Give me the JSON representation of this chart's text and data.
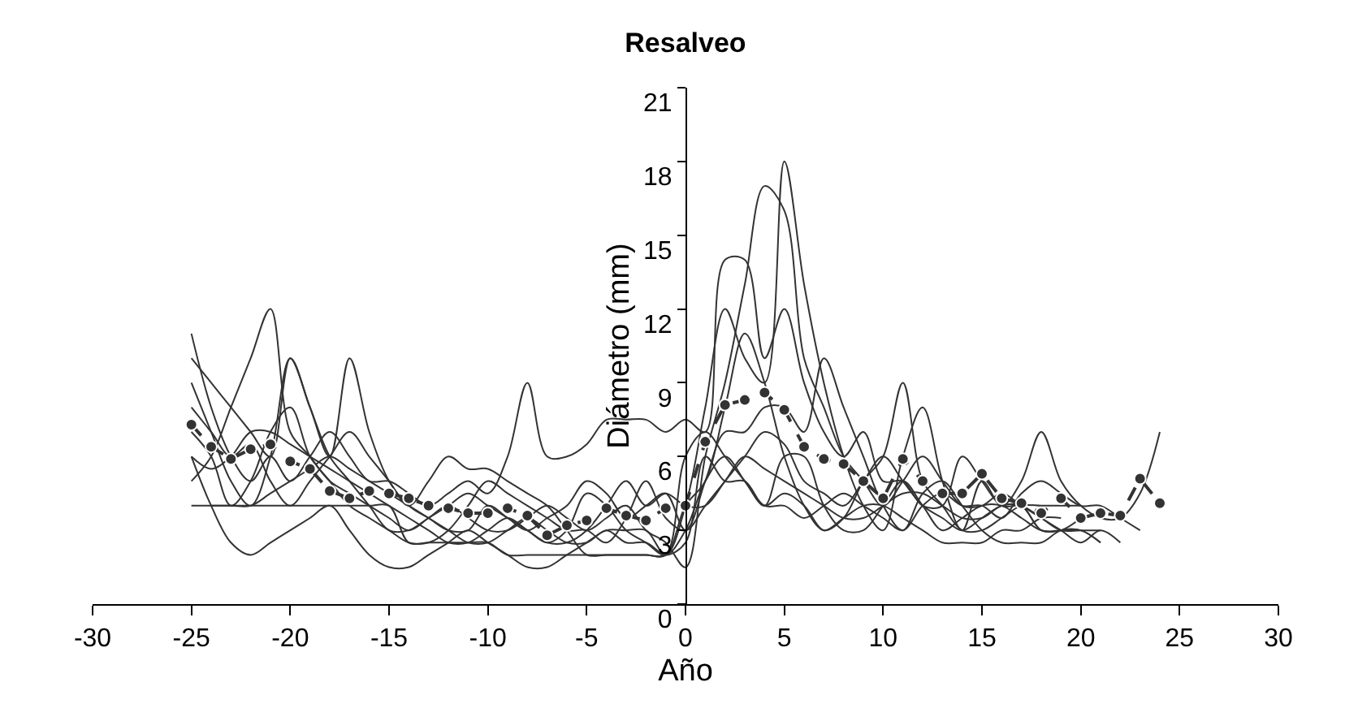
{
  "chart_data": {
    "type": "line",
    "title": "Resalveo",
    "xlabel": "Año",
    "ylabel": "Diámetro (mm)",
    "x": [
      -25,
      -24,
      -23,
      -22,
      -21,
      -20,
      -19,
      -18,
      -17,
      -16,
      -15,
      -14,
      -13,
      -12,
      -11,
      -10,
      -9,
      -8,
      -7,
      -6,
      -5,
      -4,
      -3,
      -2,
      -1,
      0,
      1,
      2,
      3,
      4,
      5,
      6,
      7,
      8,
      9,
      10,
      11,
      12,
      13,
      14,
      15,
      16,
      17,
      18,
      19,
      20,
      21,
      22,
      23,
      24
    ],
    "xlim": [
      -30,
      30
    ],
    "xticks": [
      -30,
      -25,
      -20,
      -15,
      -10,
      -5,
      0,
      5,
      10,
      15,
      20,
      25,
      30
    ],
    "ylim": [
      0,
      21
    ],
    "yticks": [
      0,
      3,
      6,
      9,
      12,
      15,
      18,
      21
    ],
    "series": [
      {
        "color": "#333333",
        "marker": "none",
        "line_style": "solid",
        "values": [
          11,
          8,
          6,
          5,
          6,
          5,
          6,
          7,
          6,
          5,
          5,
          4.5,
          4,
          4.5,
          5,
          4.5,
          6,
          9,
          6,
          6,
          6.5,
          7.5,
          7.5,
          7.5,
          7,
          7.5,
          7,
          14,
          14,
          10,
          12,
          9,
          7,
          6,
          7,
          5,
          5,
          4,
          4,
          6,
          5,
          4,
          4,
          3.5,
          3,
          2.5,
          3,
          2.5,
          null,
          null
        ]
      },
      {
        "color": "#333333",
        "marker": "none",
        "line_style": "solid",
        "values": [
          5,
          6,
          8,
          10,
          12,
          7,
          6,
          5,
          4.5,
          4,
          3.5,
          3,
          3.5,
          4,
          3.5,
          3,
          3,
          3.5,
          4,
          3.5,
          3,
          3.5,
          4,
          3,
          2.5,
          1.5,
          6,
          9,
          13,
          17,
          16,
          10,
          8,
          6,
          5,
          4,
          5,
          6,
          5,
          4,
          4,
          4.5,
          4,
          3.5,
          3,
          3,
          3,
          null,
          null,
          null
        ]
      },
      {
        "color": "#333333",
        "marker": "none",
        "line_style": "solid",
        "values": [
          9,
          7,
          5,
          4,
          6,
          10,
          8,
          6,
          10,
          7,
          5,
          4,
          3.5,
          3,
          3,
          4,
          3.5,
          3,
          2.5,
          3,
          4.5,
          4,
          3,
          2.5,
          2,
          4,
          8,
          12,
          10,
          9,
          18,
          13,
          9,
          6,
          4,
          3,
          6,
          8,
          5,
          3,
          5,
          4,
          5,
          7,
          5,
          4,
          3.5,
          3.5,
          4.5,
          7
        ]
      },
      {
        "color": "#333333",
        "marker": "none",
        "line_style": "solid",
        "values": [
          7,
          6,
          4,
          5,
          7,
          8,
          6,
          5,
          4,
          3.5,
          3,
          2.5,
          2.5,
          3,
          4,
          5,
          4.5,
          4,
          3.5,
          3,
          3,
          2.5,
          3.5,
          5,
          3.5,
          3,
          5,
          7,
          7,
          8,
          8,
          7,
          10,
          8,
          6,
          4,
          3,
          4.5,
          5,
          4,
          3,
          2.5,
          2.5,
          2.5,
          3,
          3,
          2.5,
          null,
          null,
          null
        ]
      },
      {
        "color": "#333333",
        "marker": "none",
        "line_style": "solid",
        "values": [
          4,
          4,
          4,
          4,
          4.5,
          5,
          5.5,
          6,
          5.5,
          5,
          4.5,
          4,
          3.5,
          3,
          2.5,
          2.5,
          3,
          3.5,
          3,
          2.5,
          2.5,
          3,
          2.5,
          2.5,
          2,
          2.5,
          6,
          5,
          5,
          4,
          4.5,
          4,
          3,
          3.5,
          5,
          6,
          9,
          5,
          4,
          3,
          3,
          3.5,
          4,
          4,
          4,
          4,
          null,
          null,
          null,
          null
        ]
      },
      {
        "color": "#333333",
        "marker": "none",
        "line_style": "solid",
        "values": [
          6,
          5.5,
          6,
          7,
          7,
          6.5,
          6,
          5.5,
          5,
          4.5,
          4,
          3.5,
          3,
          2.5,
          2.5,
          3,
          3.5,
          3,
          2.5,
          2.5,
          3,
          4,
          5,
          4,
          4.5,
          4,
          4,
          5,
          6,
          5.5,
          5,
          4.5,
          4,
          3.5,
          3.5,
          4,
          4.5,
          4.5,
          4,
          3.5,
          3.5,
          4,
          4,
          3,
          3,
          3,
          2.5,
          null,
          null,
          null
        ]
      },
      {
        "color": "#333333",
        "marker": "none",
        "line_style": "solid",
        "values": [
          8,
          7,
          6,
          6.5,
          5,
          4,
          5,
          6,
          7,
          6,
          5,
          4,
          5,
          6,
          5.5,
          5.5,
          5,
          4.5,
          4,
          3,
          2,
          2,
          2,
          2,
          2,
          4,
          5,
          8,
          11,
          9,
          6,
          4,
          3,
          3.5,
          4,
          4,
          3.5,
          3,
          2.5,
          2.5,
          2.5,
          3,
          3,
          3.5,
          3.5,
          null,
          null,
          null,
          null,
          null
        ]
      },
      {
        "color": "#333333",
        "marker": "none",
        "line_style": "solid",
        "values": [
          null,
          4,
          4,
          4,
          4,
          4,
          4,
          4,
          4,
          4,
          4,
          2.5,
          2.5,
          2.5,
          2.5,
          2.5,
          2,
          2,
          2,
          2,
          2,
          2,
          2,
          2,
          2,
          6,
          7,
          6,
          5,
          4,
          4,
          3.5,
          4,
          4.5,
          4,
          3.5,
          3,
          4,
          4.5,
          4,
          4,
          3.5,
          4.5,
          5,
          4.5,
          4,
          4,
          3.5,
          3,
          null
        ]
      },
      {
        "color": "#333333",
        "marker": "none",
        "line_style": "solid",
        "values": [
          6,
          4,
          2.5,
          2,
          2.5,
          3,
          3.5,
          4,
          3,
          2,
          1.5,
          1.5,
          2,
          2.5,
          3,
          2.5,
          2,
          1.5,
          1.5,
          2,
          2.5,
          3,
          3,
          3,
          2,
          3,
          5,
          6,
          5,
          4,
          6,
          6,
          4,
          3,
          3,
          4,
          5,
          4,
          3,
          3.5,
          4,
          4,
          3.5,
          3,
          3,
          3.5,
          null,
          null,
          null,
          null
        ]
      },
      {
        "color": "#333333",
        "marker": "none",
        "line_style": "solid",
        "values": [
          10,
          9,
          8,
          7,
          6,
          10,
          8,
          6,
          5,
          4,
          3,
          3,
          3.5,
          4,
          4.5,
          4,
          3.5,
          3,
          3.5,
          4,
          5,
          4.5,
          3.5,
          4,
          4.5,
          3,
          4,
          5,
          6,
          7,
          6.5,
          5,
          4.5,
          4,
          5,
          6,
          5,
          4,
          3.5,
          3,
          3.5,
          4,
          4,
          3,
          3,
          null,
          null,
          null,
          null,
          null
        ]
      },
      {
        "color": "#333333",
        "marker": "circle",
        "line_style": "dashed",
        "values": [
          7.3,
          6.4,
          5.9,
          6.3,
          6.5,
          5.8,
          5.5,
          4.6,
          4.3,
          4.6,
          4.5,
          4.3,
          4.0,
          3.9,
          3.7,
          3.7,
          3.9,
          3.6,
          2.8,
          3.2,
          3.4,
          3.9,
          3.6,
          3.4,
          3.9,
          4.0,
          6.6,
          8.1,
          8.3,
          8.6,
          7.9,
          6.4,
          5.9,
          5.7,
          5.0,
          4.3,
          5.9,
          5.0,
          4.5,
          4.5,
          5.3,
          4.3,
          4.1,
          3.7,
          4.3,
          3.5,
          3.7,
          3.6,
          5.1,
          4.1
        ]
      }
    ]
  }
}
